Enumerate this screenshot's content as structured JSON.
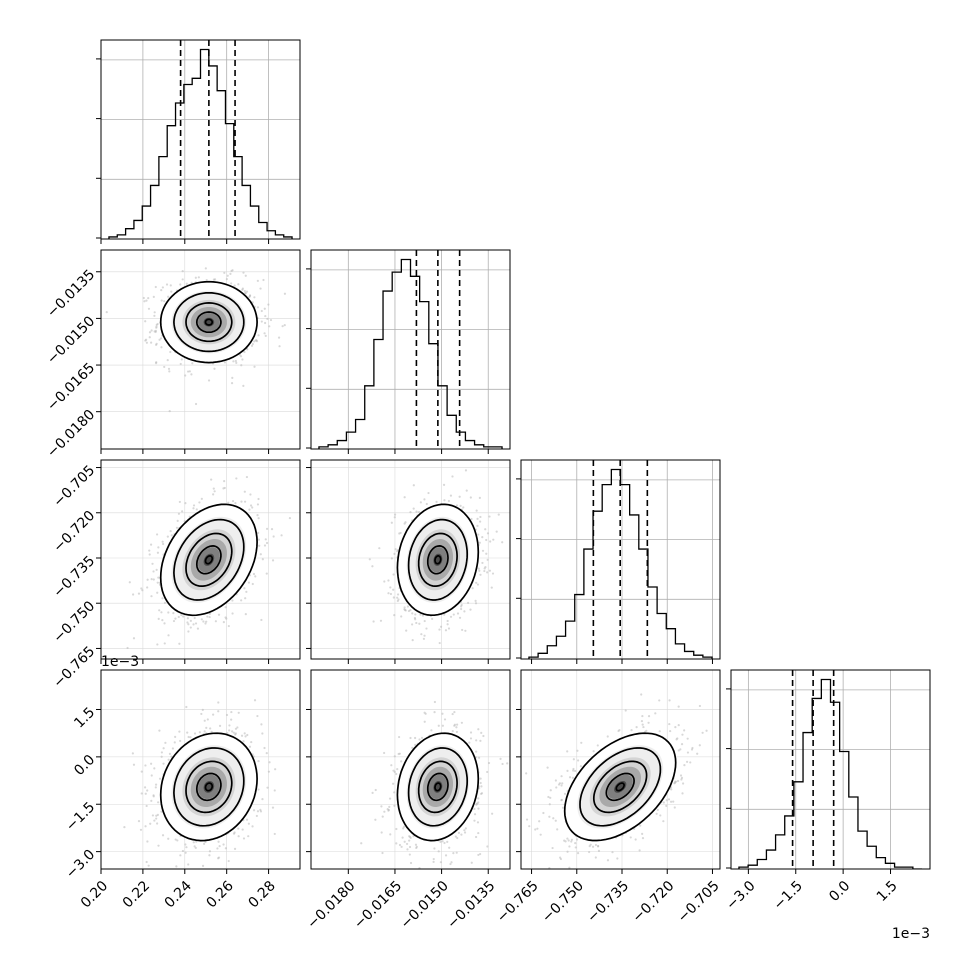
{
  "chart_data": {
    "type": "corner",
    "parameters": [
      {
        "range": [
          0.2,
          0.295
        ],
        "ticks": [
          0.2,
          0.22,
          0.24,
          0.26,
          0.28
        ],
        "tick_labels": [
          "0.20",
          "0.22",
          "0.24",
          "0.26",
          "0.28"
        ],
        "quantiles": [
          0.238,
          0.2515,
          0.264
        ],
        "offset_text": ""
      },
      {
        "range": [
          -0.0192,
          -0.0128
        ],
        "ticks": [
          -0.018,
          -0.0165,
          -0.015,
          -0.0135
        ],
        "tick_labels": [
          "−0.0180",
          "−0.0165",
          "−0.0150",
          "−0.0135"
        ],
        "quantiles": [
          -0.01581,
          -0.01512,
          -0.01442
        ],
        "offset_text": ""
      },
      {
        "range": [
          -0.7685,
          -0.7025
        ],
        "ticks": [
          -0.765,
          -0.75,
          -0.735,
          -0.72,
          -0.705
        ],
        "tick_labels": [
          "−0.765",
          "−0.750",
          "−0.735",
          "−0.720",
          "−0.705"
        ],
        "quantiles": [
          -0.7445,
          -0.7356,
          -0.7266
        ],
        "offset_text": ""
      },
      {
        "range": [
          -3.55,
          2.75
        ],
        "ticks": [
          -3.0,
          -1.5,
          0.0,
          1.5
        ],
        "tick_labels": [
          "−3.0",
          "−1.5",
          "0.0",
          "1.5"
        ],
        "quantiles": [
          -1.6,
          -0.95,
          -0.3
        ],
        "offset_text": "1e−3"
      }
    ],
    "histograms": [
      [
        1,
        2,
        5,
        9,
        16,
        26,
        40,
        55,
        66,
        75,
        78,
        92,
        84,
        72,
        56,
        40,
        26,
        16,
        8,
        4,
        2,
        1
      ],
      [
        1,
        2,
        4,
        8,
        14,
        30,
        52,
        75,
        84,
        90,
        82,
        70,
        50,
        30,
        16,
        8,
        4,
        2,
        1,
        1
      ],
      [
        1,
        3,
        7,
        12,
        20,
        34,
        58,
        78,
        92,
        100,
        92,
        76,
        58,
        38,
        24,
        16,
        8,
        4,
        2,
        1
      ],
      [
        1,
        2,
        5,
        10,
        18,
        28,
        46,
        72,
        90,
        100,
        88,
        62,
        38,
        20,
        12,
        6,
        3,
        1,
        1,
        0
      ]
    ],
    "correlations": [
      [
        1.0,
        0.0,
        0.32,
        0.15
      ],
      [
        0.0,
        1.0,
        0.14,
        0.15
      ],
      [
        0.32,
        0.14,
        1.0,
        0.45
      ],
      [
        0.15,
        0.15,
        0.45,
        1.0
      ]
    ],
    "stds": [
      0.0115,
      0.00065,
      0.0092,
      0.85
    ],
    "quantile_levels": [
      0.16,
      0.5,
      0.84
    ]
  }
}
